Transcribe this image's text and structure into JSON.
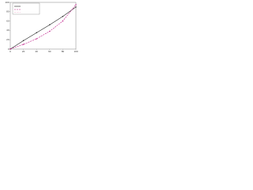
{
  "chart_data": {
    "type": "line",
    "x": [
      0,
      20,
      40,
      60,
      80,
      100
    ],
    "series": [
      {
        "color": "#222222",
        "dash": "none",
        "values": [
          0,
          18,
          35,
          52,
          70,
          90
        ]
      },
      {
        "color": "#c0208a",
        "dash": "2,1",
        "values": [
          0,
          10,
          22,
          38,
          60,
          95
        ]
      }
    ],
    "xlim": [
      0,
      100
    ],
    "ylim": [
      0,
      100
    ],
    "xticks": [
      0,
      20,
      40,
      60,
      80,
      100
    ],
    "yticks": [
      0,
      20,
      40,
      60,
      80,
      100
    ],
    "grid": false
  }
}
